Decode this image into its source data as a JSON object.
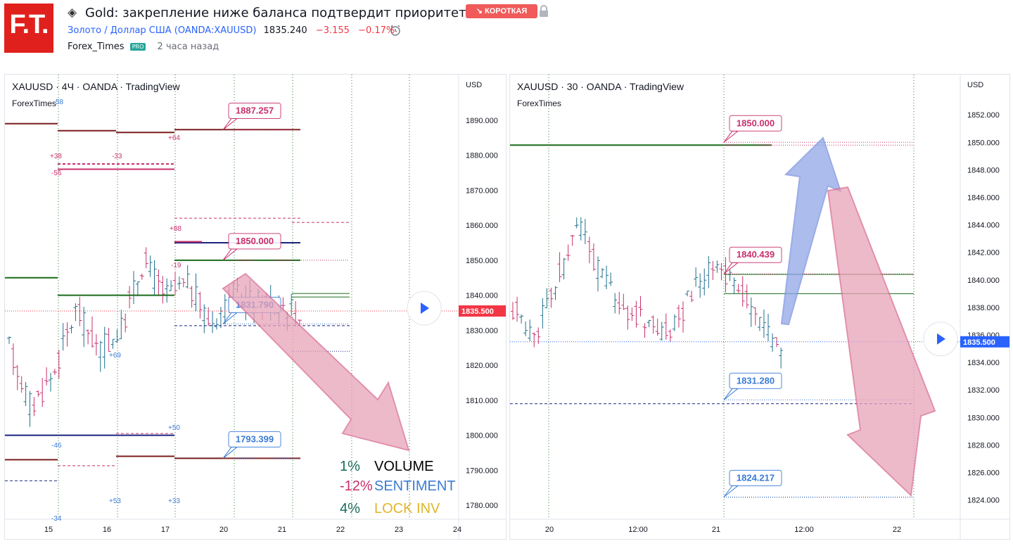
{
  "header": {
    "logo_text": "F.T.",
    "title": "Gold: закрепление ниже баланса подтвердит приоритет.",
    "badge": "↘ КОРОТКАЯ",
    "symbol_name": "Золото / Доллар США (OANDA:XAUUSD)",
    "price": "1835.240",
    "change": "−3.155",
    "change_pct": "−0.17%",
    "author": "Forex_Times",
    "pro": "PRO",
    "time_ago": "2 часа назад"
  },
  "colors": {
    "pink": "#c8306c",
    "pink_fill": "#e8a3b9",
    "blue_arrow": "#8fa6e8",
    "dark_red": "#7b1d1d",
    "dark_green": "#1a6b1a",
    "navy": "#1a237e",
    "price_tag": "#f23645",
    "price_tag2": "#2962ff",
    "teal": "#1a6b5a",
    "sentiment_blue": "#3a7bd5",
    "gold": "#e0b52a"
  },
  "chart_data": [
    {
      "type": "line",
      "title": "XAUUSD · 4Ч · OANDA · TradingView",
      "author": "ForexTimes",
      "currency": "USD",
      "ylim": [
        1776,
        1897
      ],
      "y_ticks": [
        1890,
        1880,
        1870,
        1860,
        1850,
        1840,
        1830,
        1820,
        1810,
        1800,
        1790,
        1780
      ],
      "x_ticks": [
        "15",
        "16",
        "17",
        "20",
        "21",
        "22",
        "23",
        "24"
      ],
      "last_price": "1835.500",
      "levels": [
        {
          "label": "1887.257",
          "value": 1887.257
        },
        {
          "label": "1850.000",
          "value": 1850.0
        },
        {
          "label": "1831.790",
          "value": 1831.79
        },
        {
          "label": "1793.399",
          "value": 1793.399
        }
      ],
      "small_labels": [
        "+38",
        "-56",
        "-33",
        "+64",
        "+88",
        "-19",
        "+69",
        "+50",
        "-46",
        "+53",
        "+33",
        "-34",
        "58"
      ],
      "stats": [
        {
          "value": "1%",
          "label": "VOLUME"
        },
        {
          "value": "-12%",
          "label": "SENTIMENT"
        },
        {
          "value": "4%",
          "label": "LOCK INV"
        }
      ]
    },
    {
      "type": "line",
      "title": "XAUUSD · 30 · OANDA · TradingView",
      "author": "ForexTimes",
      "currency": "USD",
      "ylim": [
        1822.6,
        1853.8
      ],
      "y_ticks": [
        1852,
        1850,
        1848,
        1846,
        1844,
        1842,
        1840,
        1838,
        1836,
        1834,
        1832,
        1830,
        1828,
        1826,
        1824
      ],
      "x_ticks": [
        "20",
        "12:00",
        "21",
        "12:00",
        "22"
      ],
      "last_price": "1835.500",
      "levels": [
        {
          "label": "1850.000",
          "value": 1850.0
        },
        {
          "label": "1840.439",
          "value": 1840.439
        },
        {
          "label": "1831.280",
          "value": 1831.28
        },
        {
          "label": "1824.217",
          "value": 1824.217
        }
      ]
    }
  ]
}
